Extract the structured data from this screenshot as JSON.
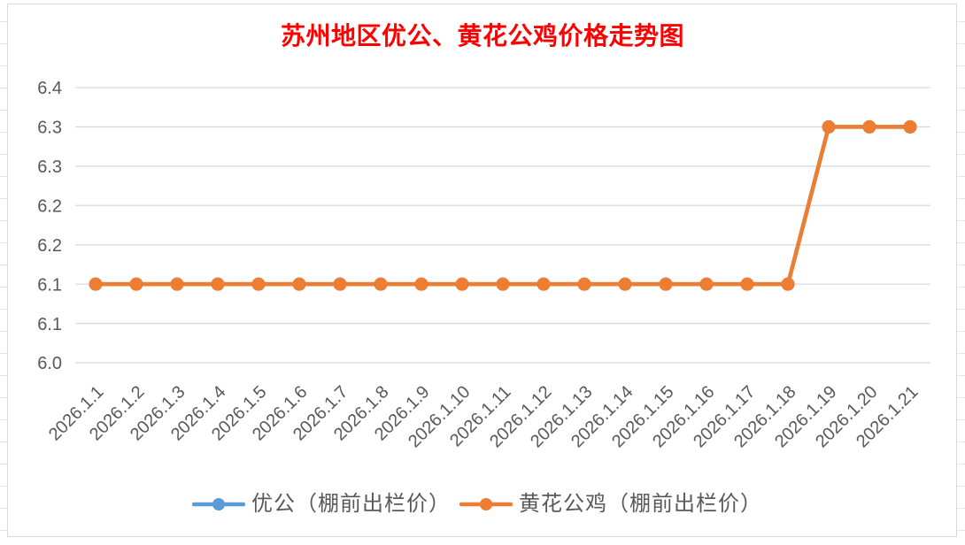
{
  "chart_data": {
    "type": "line",
    "title": "苏州地区优公、黄花公鸡价格走势图",
    "xlabel": "",
    "ylabel": "",
    "categories": [
      "2026.1.1",
      "2026.1.2",
      "2026.1.3",
      "2026.1.4",
      "2026.1.5",
      "2026.1.6",
      "2026.1.7",
      "2026.1.8",
      "2026.1.9",
      "2026.1.10",
      "2026.1.11",
      "2026.1.12",
      "2026.1.13",
      "2026.1.14",
      "2026.1.15",
      "2026.1.16",
      "2026.1.17",
      "2026.1.18",
      "2026.1.19",
      "2026.1.20",
      "2026.1.21"
    ],
    "series": [
      {
        "name": "优公（棚前出栏价）",
        "color": "#5B9BD5",
        "values": [
          6.1,
          6.1,
          6.1,
          6.1,
          6.1,
          6.1,
          6.1,
          6.1,
          6.1,
          6.1,
          6.1,
          6.1,
          6.1,
          6.1,
          6.1,
          6.1,
          6.1,
          6.1,
          6.3,
          6.3,
          6.3
        ]
      },
      {
        "name": "黄花公鸡（棚前出栏价）",
        "color": "#ED7D31",
        "values": [
          6.1,
          6.1,
          6.1,
          6.1,
          6.1,
          6.1,
          6.1,
          6.1,
          6.1,
          6.1,
          6.1,
          6.1,
          6.1,
          6.1,
          6.1,
          6.1,
          6.1,
          6.1,
          6.3,
          6.3,
          6.3
        ]
      }
    ],
    "ylim": [
      6.0,
      6.35
    ],
    "yticks": [
      6.0,
      6.05,
      6.1,
      6.15,
      6.2,
      6.25,
      6.3,
      6.35
    ],
    "ytick_labels": [
      "6.0",
      "6.1",
      "6.1",
      "6.2",
      "6.2",
      "6.3",
      "6.3",
      "6.4"
    ],
    "grid": true,
    "markers": "circle",
    "legend": "bottom"
  },
  "colors": {
    "title": "#FF0000",
    "grid": "#D9D9D9",
    "tick_text": "#595959"
  }
}
